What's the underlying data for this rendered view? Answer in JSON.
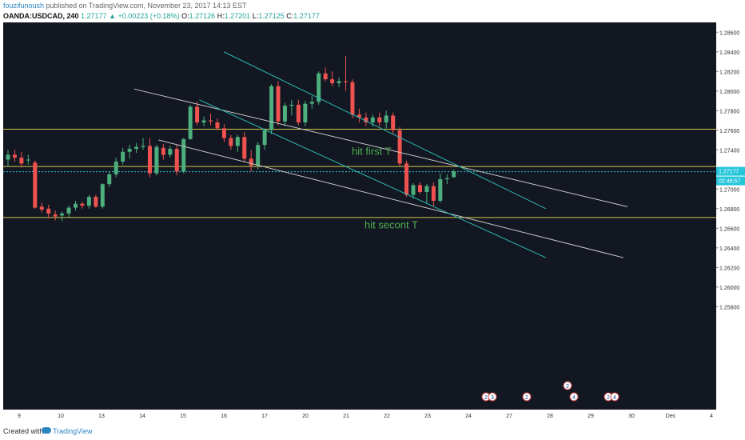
{
  "header": {
    "author": "fouzifunoush",
    "published_text": " published on TradingView.com, November 23, 2017 14:13 EST",
    "symbol": "OANDA:USDCAD, 240",
    "last": "1.27177",
    "change": "▲ +0.00223 (+0.18%)",
    "o_label": "O:",
    "o_val": "1.27126",
    "h_label": "H:",
    "h_val": "1.27201",
    "l_label": "L:",
    "l_val": "1.27125",
    "c_label": "C:",
    "c_val": "1.27177"
  },
  "footer": {
    "created_with": "Created with",
    "brand": "TradingView"
  },
  "price_badges": {
    "price": "1.27177",
    "countdown": "02:46:57"
  },
  "colors": {
    "background": "#131722",
    "up": "#26a69a",
    "up_bright": "#4caf7d",
    "down": "#ef5350",
    "horizontal_line": "#d4c94a",
    "white_trend": "#c8c8c8",
    "cyan_trend": "#2ab7b0",
    "annotation": "#4caf50",
    "price_line": "#26c6da"
  },
  "chart_data": {
    "type": "candlestick",
    "symbol": "OANDA:USDCAD",
    "timeframe": "240",
    "ylim": [
      1.2475,
      1.287
    ],
    "y_ticks": [
      "1.28600",
      "1.28400",
      "1.28200",
      "1.28000",
      "1.27800",
      "1.27600",
      "1.27400",
      "1.27200",
      "1.27000",
      "1.26800",
      "1.26600",
      "1.26400",
      "1.26200",
      "1.26000",
      "1.25800"
    ],
    "x_tick_labels": [
      "9",
      "10",
      "13",
      "14",
      "15",
      "16",
      "17",
      "20",
      "21",
      "22",
      "23",
      "24",
      "27",
      "28",
      "29",
      "30",
      "Dec",
      "4"
    ],
    "grid": false,
    "horizontal_levels": [
      1.2761,
      1.2723,
      1.2671
    ],
    "last_price_line": 1.27177,
    "annotations": [
      {
        "text": "hit first T",
        "price": 1.2735
      },
      {
        "text": "hit secont T",
        "price": 1.266
      }
    ],
    "trendlines": [
      {
        "color": "white",
        "from": [
          "13.8",
          1.2802
        ],
        "to": [
          "29.9",
          1.2682
        ]
      },
      {
        "color": "white",
        "from": [
          "14.4",
          1.275
        ],
        "to": [
          "29.8",
          1.263
        ]
      },
      {
        "color": "cyan",
        "from": [
          "16.0",
          1.284
        ],
        "to": [
          "27.9",
          1.268
        ]
      },
      {
        "color": "cyan",
        "from": [
          "15.4",
          1.2791
        ],
        "to": [
          "27.9",
          1.263
        ]
      }
    ],
    "candles": [
      {
        "o": 1.273,
        "h": 1.274,
        "l": 1.2723,
        "c": 1.2735
      },
      {
        "o": 1.2735,
        "h": 1.274,
        "l": 1.2728,
        "c": 1.2732
      },
      {
        "o": 1.2732,
        "h": 1.2738,
        "l": 1.2722,
        "c": 1.2726
      },
      {
        "o": 1.273,
        "h": 1.2735,
        "l": 1.2725,
        "c": 1.273
      },
      {
        "o": 1.2727,
        "h": 1.2729,
        "l": 1.268,
        "c": 1.2681
      },
      {
        "o": 1.2682,
        "h": 1.2686,
        "l": 1.2676,
        "c": 1.2679
      },
      {
        "o": 1.268,
        "h": 1.2684,
        "l": 1.267,
        "c": 1.2675
      },
      {
        "o": 1.2674,
        "h": 1.2678,
        "l": 1.2668,
        "c": 1.2672
      },
      {
        "o": 1.2673,
        "h": 1.2677,
        "l": 1.2667,
        "c": 1.2675
      },
      {
        "o": 1.2675,
        "h": 1.2683,
        "l": 1.2671,
        "c": 1.2681
      },
      {
        "o": 1.2681,
        "h": 1.2688,
        "l": 1.2678,
        "c": 1.2685
      },
      {
        "o": 1.2685,
        "h": 1.2687,
        "l": 1.268,
        "c": 1.2683
      },
      {
        "o": 1.2683,
        "h": 1.2694,
        "l": 1.268,
        "c": 1.2692
      },
      {
        "o": 1.2692,
        "h": 1.2694,
        "l": 1.2681,
        "c": 1.2682
      },
      {
        "o": 1.2682,
        "h": 1.2706,
        "l": 1.268,
        "c": 1.2705
      },
      {
        "o": 1.2705,
        "h": 1.2718,
        "l": 1.2702,
        "c": 1.2715
      },
      {
        "o": 1.2715,
        "h": 1.2732,
        "l": 1.2712,
        "c": 1.2728
      },
      {
        "o": 1.2728,
        "h": 1.2742,
        "l": 1.2725,
        "c": 1.2738
      },
      {
        "o": 1.2738,
        "h": 1.2745,
        "l": 1.2731,
        "c": 1.2741
      },
      {
        "o": 1.2741,
        "h": 1.2747,
        "l": 1.2737,
        "c": 1.2743
      },
      {
        "o": 1.2743,
        "h": 1.2752,
        "l": 1.274,
        "c": 1.2744
      },
      {
        "o": 1.2744,
        "h": 1.2752,
        "l": 1.2712,
        "c": 1.2716
      },
      {
        "o": 1.2716,
        "h": 1.2745,
        "l": 1.2714,
        "c": 1.2743
      },
      {
        "o": 1.2742,
        "h": 1.2746,
        "l": 1.273,
        "c": 1.2735
      },
      {
        "o": 1.2735,
        "h": 1.2744,
        "l": 1.2732,
        "c": 1.2741
      },
      {
        "o": 1.2741,
        "h": 1.2745,
        "l": 1.2714,
        "c": 1.2718
      },
      {
        "o": 1.2718,
        "h": 1.2752,
        "l": 1.2716,
        "c": 1.2751
      },
      {
        "o": 1.2751,
        "h": 1.2786,
        "l": 1.275,
        "c": 1.2784
      },
      {
        "o": 1.2784,
        "h": 1.2789,
        "l": 1.2765,
        "c": 1.2768
      },
      {
        "o": 1.2768,
        "h": 1.2774,
        "l": 1.2764,
        "c": 1.277
      },
      {
        "o": 1.277,
        "h": 1.2777,
        "l": 1.2765,
        "c": 1.2769
      },
      {
        "o": 1.2768,
        "h": 1.2772,
        "l": 1.276,
        "c": 1.2762
      },
      {
        "o": 1.2762,
        "h": 1.2766,
        "l": 1.2748,
        "c": 1.2752
      },
      {
        "o": 1.2752,
        "h": 1.2755,
        "l": 1.274,
        "c": 1.2744
      },
      {
        "o": 1.2744,
        "h": 1.2755,
        "l": 1.2738,
        "c": 1.2753
      },
      {
        "o": 1.2753,
        "h": 1.2758,
        "l": 1.2728,
        "c": 1.2731
      },
      {
        "o": 1.2731,
        "h": 1.274,
        "l": 1.2718,
        "c": 1.2724
      },
      {
        "o": 1.2724,
        "h": 1.2748,
        "l": 1.272,
        "c": 1.2745
      },
      {
        "o": 1.2745,
        "h": 1.2762,
        "l": 1.274,
        "c": 1.276
      },
      {
        "o": 1.276,
        "h": 1.2807,
        "l": 1.2756,
        "c": 1.2805
      },
      {
        "o": 1.2805,
        "h": 1.281,
        "l": 1.2765,
        "c": 1.2769
      },
      {
        "o": 1.2769,
        "h": 1.2788,
        "l": 1.2764,
        "c": 1.2785
      },
      {
        "o": 1.2785,
        "h": 1.2791,
        "l": 1.2775,
        "c": 1.2786
      },
      {
        "o": 1.2786,
        "h": 1.2791,
        "l": 1.2765,
        "c": 1.2768
      },
      {
        "o": 1.2768,
        "h": 1.279,
        "l": 1.2764,
        "c": 1.2787
      },
      {
        "o": 1.2787,
        "h": 1.2795,
        "l": 1.2782,
        "c": 1.2789
      },
      {
        "o": 1.2789,
        "h": 1.282,
        "l": 1.2786,
        "c": 1.2818
      },
      {
        "o": 1.2818,
        "h": 1.2824,
        "l": 1.281,
        "c": 1.2812
      },
      {
        "o": 1.2812,
        "h": 1.282,
        "l": 1.2805,
        "c": 1.2808
      },
      {
        "o": 1.2808,
        "h": 1.2814,
        "l": 1.2804,
        "c": 1.281
      },
      {
        "o": 1.281,
        "h": 1.2836,
        "l": 1.28,
        "c": 1.2809
      },
      {
        "o": 1.2809,
        "h": 1.2812,
        "l": 1.2772,
        "c": 1.2776
      },
      {
        "o": 1.2776,
        "h": 1.2782,
        "l": 1.2768,
        "c": 1.2773
      },
      {
        "o": 1.2773,
        "h": 1.2778,
        "l": 1.2764,
        "c": 1.2768
      },
      {
        "o": 1.2768,
        "h": 1.2776,
        "l": 1.2764,
        "c": 1.2773
      },
      {
        "o": 1.2773,
        "h": 1.2778,
        "l": 1.2764,
        "c": 1.2768
      },
      {
        "o": 1.2768,
        "h": 1.278,
        "l": 1.2762,
        "c": 1.2775
      },
      {
        "o": 1.2775,
        "h": 1.2778,
        "l": 1.2756,
        "c": 1.276
      },
      {
        "o": 1.276,
        "h": 1.2763,
        "l": 1.2723,
        "c": 1.2726
      },
      {
        "o": 1.2726,
        "h": 1.2729,
        "l": 1.2692,
        "c": 1.2694
      },
      {
        "o": 1.2694,
        "h": 1.2706,
        "l": 1.269,
        "c": 1.2704
      },
      {
        "o": 1.2704,
        "h": 1.2707,
        "l": 1.2695,
        "c": 1.2697
      },
      {
        "o": 1.2697,
        "h": 1.2705,
        "l": 1.2685,
        "c": 1.2703
      },
      {
        "o": 1.2703,
        "h": 1.2707,
        "l": 1.2682,
        "c": 1.2688
      },
      {
        "o": 1.2688,
        "h": 1.2716,
        "l": 1.2686,
        "c": 1.271
      },
      {
        "o": 1.271,
        "h": 1.2715,
        "l": 1.2705,
        "c": 1.2711
      },
      {
        "o": 1.2712,
        "h": 1.272,
        "l": 1.2712,
        "c": 1.2718
      }
    ],
    "events": [
      {
        "x_day": "24",
        "label": "2"
      },
      {
        "x_day": "24",
        "label": "3"
      },
      {
        "x_day": "27",
        "label": "2"
      },
      {
        "x_day": "28",
        "label": "2"
      },
      {
        "x_day": "28",
        "label": "4"
      },
      {
        "x_day": "29",
        "label": "2"
      },
      {
        "x_day": "29",
        "label": "4"
      }
    ]
  }
}
